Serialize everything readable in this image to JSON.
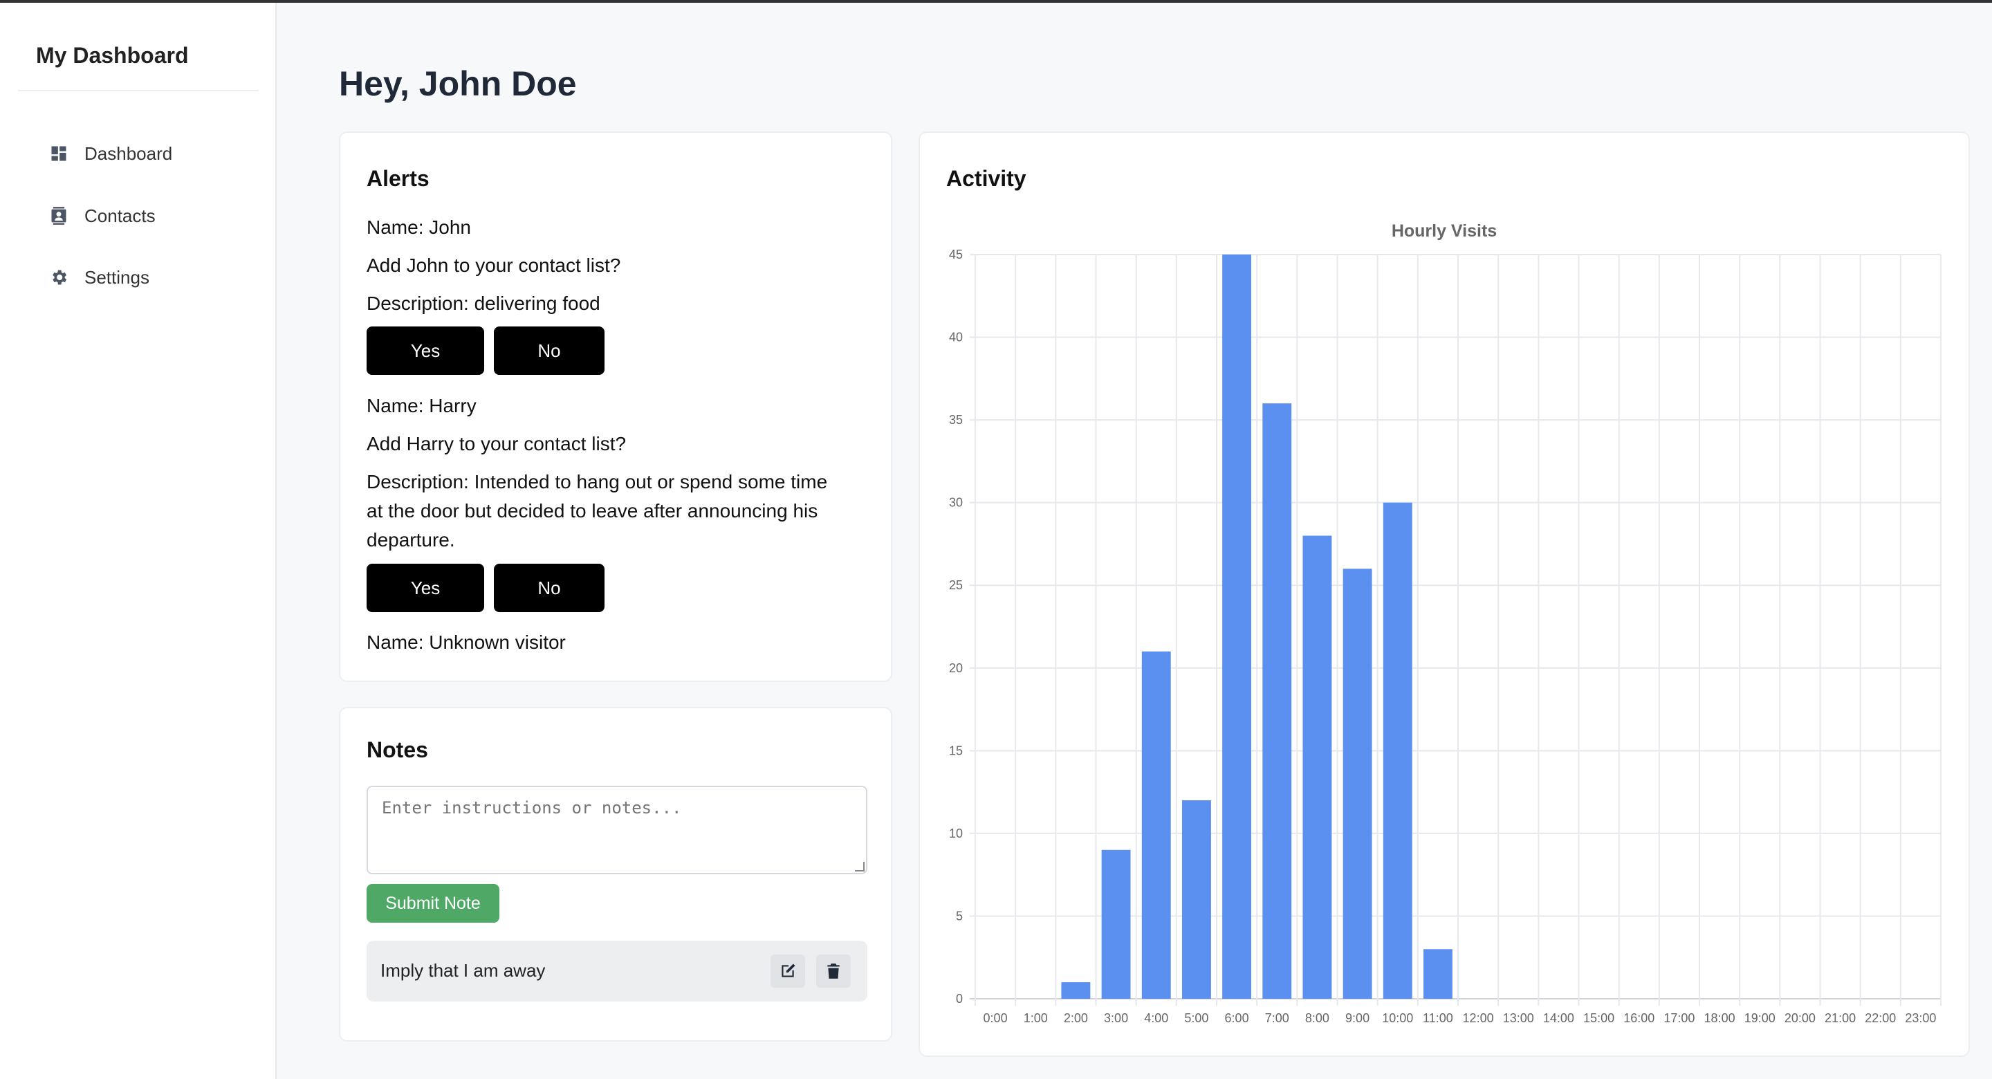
{
  "sidebar": {
    "brand": "My Dashboard",
    "items": [
      {
        "label": "Dashboard",
        "icon": "dashboard-icon"
      },
      {
        "label": "Contacts",
        "icon": "contacts-icon"
      },
      {
        "label": "Settings",
        "icon": "gear-icon"
      }
    ]
  },
  "header": {
    "greeting": "Hey, John Doe"
  },
  "alerts": {
    "title": "Alerts",
    "items": [
      {
        "name": "Name: John",
        "question": "Add John to your contact list?",
        "description": "Description: delivering food",
        "yes": "Yes",
        "no": "No"
      },
      {
        "name": "Name: Harry",
        "question": "Add Harry to your contact list?",
        "description_lines": [
          "Description: Intended to hang out or spend some time",
          "at the door but decided to leave after announcing his",
          "departure."
        ],
        "yes": "Yes",
        "no": "No"
      },
      {
        "name": "Name: Unknown visitor"
      }
    ]
  },
  "notes": {
    "title": "Notes",
    "placeholder": "Enter instructions or notes...",
    "submit_label": "Submit Note",
    "items": [
      {
        "text": "Imply that I am away"
      }
    ]
  },
  "activity": {
    "title": "Activity"
  },
  "chart_data": {
    "type": "bar",
    "title": "Hourly Visits",
    "categories": [
      "0:00",
      "1:00",
      "2:00",
      "3:00",
      "4:00",
      "5:00",
      "6:00",
      "7:00",
      "8:00",
      "9:00",
      "10:00",
      "11:00",
      "12:00",
      "13:00",
      "14:00",
      "15:00",
      "16:00",
      "17:00",
      "18:00",
      "19:00",
      "20:00",
      "21:00",
      "22:00",
      "23:00"
    ],
    "values": [
      0,
      0,
      1,
      9,
      21,
      12,
      45,
      36,
      28,
      26,
      30,
      3,
      0,
      0,
      0,
      0,
      0,
      0,
      0,
      0,
      0,
      0,
      0,
      0
    ],
    "ylim": [
      0,
      45
    ],
    "yticks": [
      0,
      5,
      10,
      15,
      20,
      25,
      30,
      35,
      40,
      45
    ],
    "grid": true,
    "bar_color": "#5b8ff0"
  }
}
